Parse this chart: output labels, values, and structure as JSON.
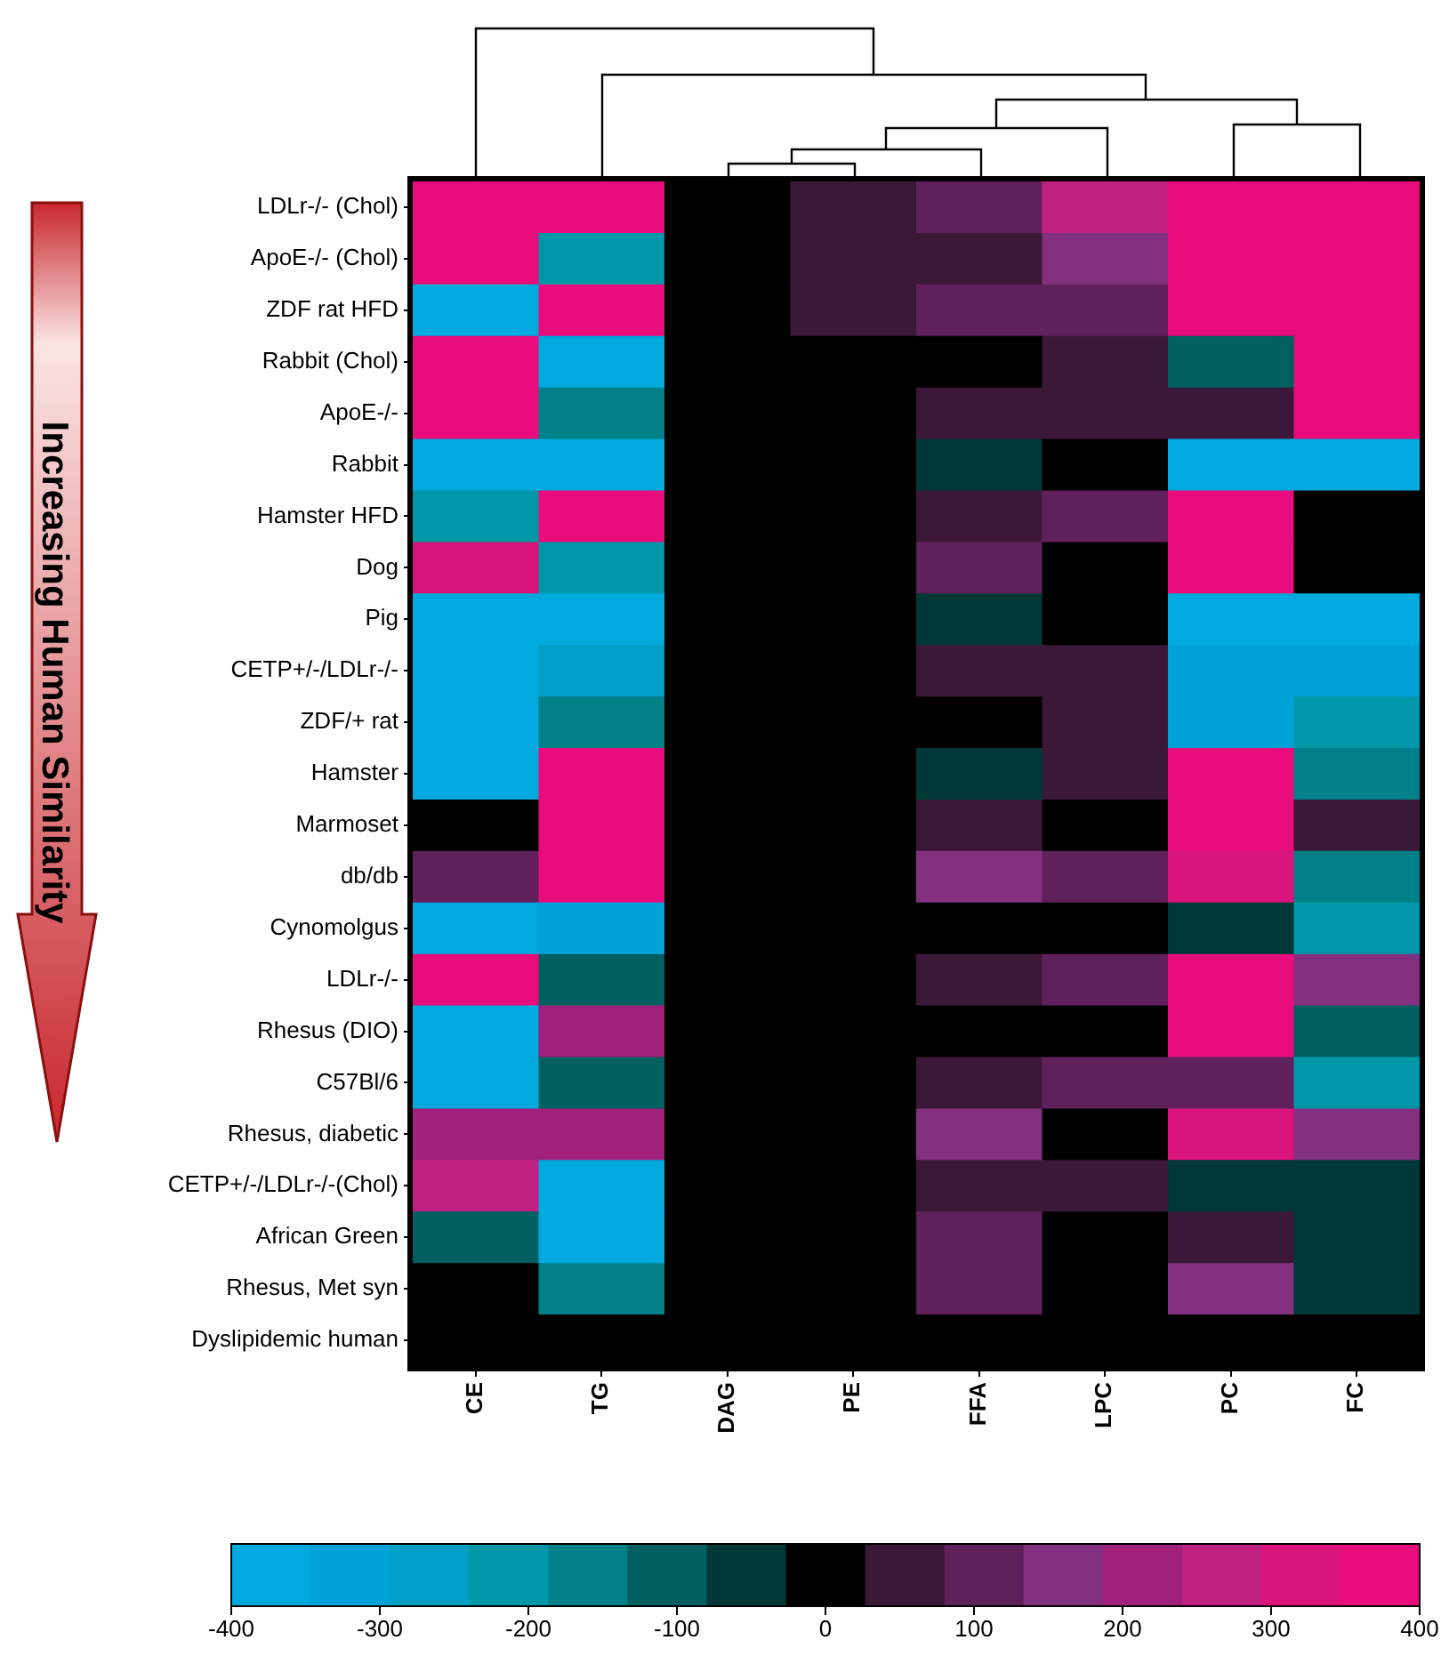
{
  "chart_data": {
    "type": "heatmap",
    "categories": [
      "CE",
      "TG",
      "DAG",
      "PE",
      "FFA",
      "LPC",
      "PC",
      "FC"
    ],
    "y_categories": [
      "LDLr-/- (Chol)",
      "ApoE-/- (Chol)",
      "ZDF rat HFD",
      "Rabbit (Chol)",
      "ApoE-/-",
      "Rabbit",
      "Hamster HFD",
      "Dog",
      "Pig",
      "CETP+/-/LDLr-/-",
      "ZDF/+ rat",
      "Hamster",
      "Marmoset",
      "db/db",
      "Cynomolgus",
      "LDLr-/-",
      "Rhesus (DIO)",
      "C57Bl/6",
      "Rhesus, diabetic",
      "CETP+/-/LDLr-/-(Chol)",
      "African Green",
      "Rhesus, Met syn",
      "Dyslipidemic human"
    ],
    "cells": [
      [
        370,
        370,
        0,
        50,
        110,
        270,
        370,
        370
      ],
      [
        370,
        -210,
        0,
        50,
        50,
        160,
        370,
        370
      ],
      [
        -370,
        370,
        0,
        50,
        110,
        110,
        370,
        370
      ],
      [
        370,
        -370,
        0,
        0,
        0,
        50,
        -110,
        370
      ],
      [
        370,
        -160,
        0,
        0,
        50,
        50,
        50,
        370
      ],
      [
        -370,
        -370,
        0,
        0,
        -50,
        0,
        -370,
        -370
      ],
      [
        -210,
        370,
        0,
        0,
        50,
        110,
        370,
        0
      ],
      [
        320,
        -210,
        0,
        0,
        110,
        0,
        370,
        0
      ],
      [
        -370,
        -370,
        0,
        0,
        -50,
        0,
        -370,
        -370
      ],
      [
        -370,
        -270,
        0,
        0,
        50,
        50,
        -320,
        -320
      ],
      [
        -370,
        -160,
        0,
        0,
        0,
        50,
        -320,
        -210
      ],
      [
        -370,
        370,
        0,
        0,
        -50,
        50,
        370,
        -160
      ],
      [
        0,
        370,
        0,
        0,
        50,
        0,
        370,
        50
      ],
      [
        110,
        370,
        0,
        0,
        160,
        110,
        320,
        -160
      ],
      [
        -370,
        -320,
        0,
        0,
        0,
        0,
        -50,
        -210
      ],
      [
        370,
        -110,
        0,
        0,
        50,
        110,
        370,
        160
      ],
      [
        -370,
        210,
        0,
        0,
        0,
        0,
        370,
        -110
      ],
      [
        -370,
        -110,
        0,
        0,
        50,
        110,
        110,
        -210
      ],
      [
        210,
        210,
        0,
        0,
        160,
        0,
        320,
        160
      ],
      [
        270,
        -370,
        0,
        0,
        50,
        50,
        -50,
        -50
      ],
      [
        -110,
        -370,
        0,
        0,
        110,
        0,
        50,
        -50
      ],
      [
        0,
        -160,
        0,
        0,
        110,
        0,
        160,
        -50
      ],
      [
        0,
        0,
        0,
        0,
        0,
        0,
        0,
        0
      ]
    ],
    "clim": [
      -400,
      400
    ],
    "cticks": [
      -400,
      -300,
      -200,
      -100,
      0,
      100,
      200,
      300,
      400
    ],
    "annotations": [
      "Increasing Human Similarity"
    ]
  }
}
